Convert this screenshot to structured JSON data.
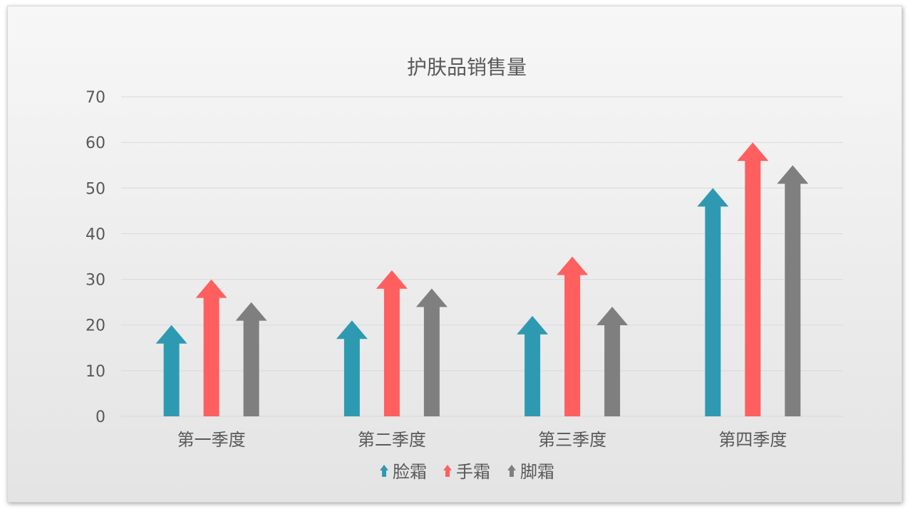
{
  "chart_data": {
    "type": "bar",
    "title": "护肤品销售量",
    "xlabel": "",
    "ylabel": "",
    "categories": [
      "第一季度",
      "第二季度",
      "第三季度",
      "第四季度"
    ],
    "series": [
      {
        "name": "脸霜",
        "values": [
          20,
          21,
          22,
          50
        ],
        "color": "#2E9AB1"
      },
      {
        "name": "手霜",
        "values": [
          30,
          32,
          35,
          60
        ],
        "color": "#FF5F5F"
      },
      {
        "name": "脚霜",
        "values": [
          25,
          28,
          24,
          55
        ],
        "color": "#7F7F7F"
      }
    ],
    "ylim": [
      0,
      70
    ],
    "yticks": [
      "0",
      "10",
      "20",
      "30",
      "40",
      "50",
      "60",
      "70"
    ],
    "grid": true,
    "legend": "bottom",
    "marker": "arrow"
  }
}
